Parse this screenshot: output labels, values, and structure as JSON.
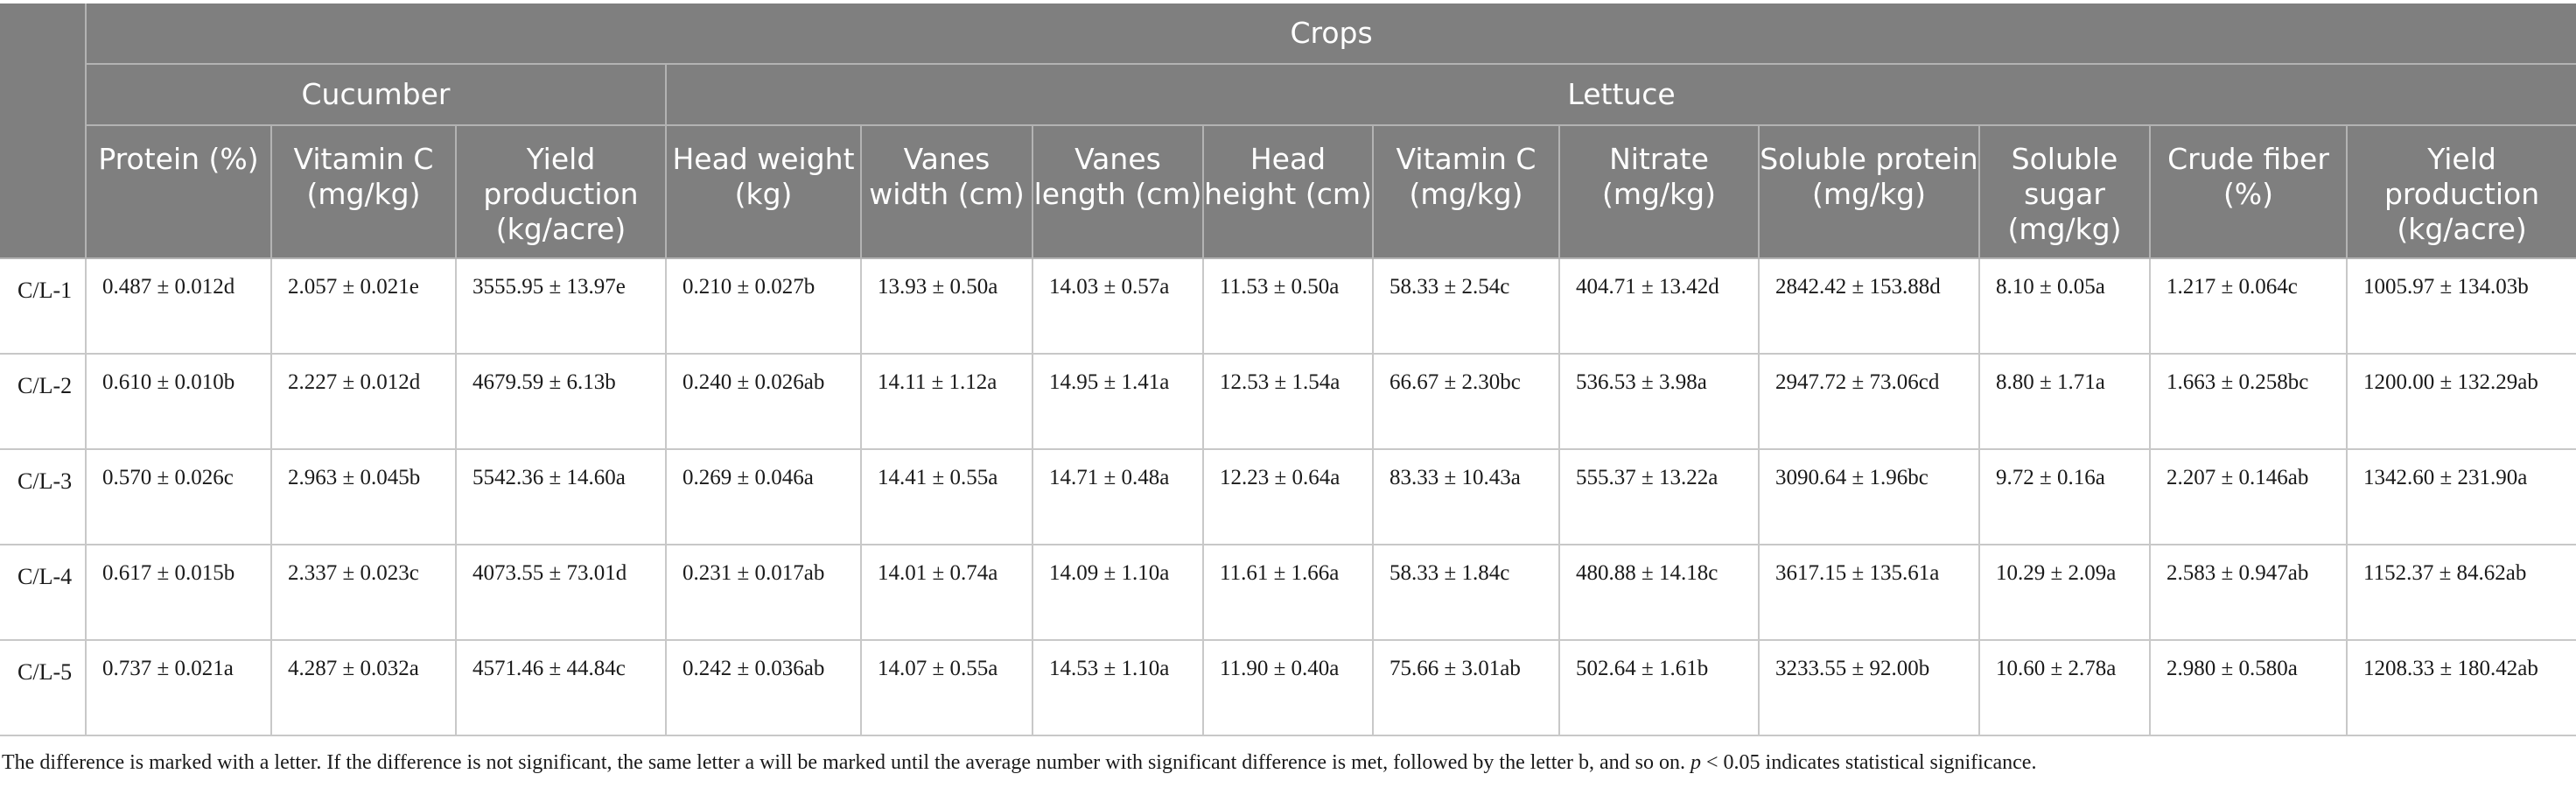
{
  "header": {
    "crops_label": "Crops",
    "group_cucumber": "Cucumber",
    "group_lettuce": "Lettuce",
    "cucumber_columns": [
      "Protein (%)",
      "Vitamin C (mg/kg)",
      "Yield production (kg/acre)"
    ],
    "lettuce_columns": [
      "Head weight (kg)",
      "Vanes width (cm)",
      "Vanes length (cm)",
      "Head height (cm)",
      "Vitamin C (mg/kg)",
      "Nitrate (mg/kg)",
      "Soluble protein (mg/kg)",
      "Soluble sugar (mg/kg)",
      "Crude fiber (%)",
      "Yield production (kg/acre)"
    ]
  },
  "rows": [
    {
      "label": "C/L-1",
      "cells": [
        "0.487 ± 0.012d",
        "2.057 ± 0.021e",
        "3555.95 ± 13.97e",
        "0.210 ± 0.027b",
        "13.93 ± 0.50a",
        "14.03 ± 0.57a",
        "11.53 ± 0.50a",
        "58.33 ± 2.54c",
        "404.71 ± 13.42d",
        "2842.42 ± 153.88d",
        "8.10 ± 0.05a",
        "1.217 ± 0.064c",
        "1005.97 ± 134.03b"
      ]
    },
    {
      "label": "C/L-2",
      "cells": [
        "0.610 ± 0.010b",
        "2.227 ± 0.012d",
        "4679.59 ± 6.13b",
        "0.240 ± 0.026ab",
        "14.11 ± 1.12a",
        "14.95 ± 1.41a",
        "12.53 ± 1.54a",
        "66.67 ± 2.30bc",
        "536.53 ± 3.98a",
        "2947.72 ± 73.06cd",
        "8.80 ± 1.71a",
        "1.663 ± 0.258bc",
        "1200.00 ± 132.29ab"
      ]
    },
    {
      "label": "C/L-3",
      "cells": [
        "0.570 ± 0.026c",
        "2.963 ± 0.045b",
        "5542.36 ± 14.60a",
        "0.269 ± 0.046a",
        "14.41 ± 0.55a",
        "14.71 ± 0.48a",
        "12.23 ± 0.64a",
        "83.33 ± 10.43a",
        "555.37 ± 13.22a",
        "3090.64 ± 1.96bc",
        "9.72 ± 0.16a",
        "2.207 ± 0.146ab",
        "1342.60 ± 231.90a"
      ]
    },
    {
      "label": "C/L-4",
      "cells": [
        "0.617 ± 0.015b",
        "2.337 ± 0.023c",
        "4073.55 ± 73.01d",
        "0.231 ± 0.017ab",
        "14.01 ± 0.74a",
        "14.09 ± 1.10a",
        "11.61 ± 1.66a",
        "58.33 ± 1.84c",
        "480.88 ± 14.18c",
        "3617.15 ± 135.61a",
        "10.29 ± 2.09a",
        "2.583 ± 0.947ab",
        "1152.37 ± 84.62ab"
      ]
    },
    {
      "label": "C/L-5",
      "cells": [
        "0.737 ± 0.021a",
        "4.287 ± 0.032a",
        "4571.46 ± 44.84c",
        "0.242 ± 0.036ab",
        "14.07 ± 0.55a",
        "14.53 ± 1.10a",
        "11.90 ± 0.40a",
        "75.66 ± 3.01ab",
        "502.64 ± 1.61b",
        "3233.55 ± 92.00b",
        "10.60 ± 2.78a",
        "2.980 ± 0.580a",
        "1208.33 ± 180.42ab"
      ]
    }
  ],
  "footnote": {
    "text_before": "The difference is marked with a letter. If the difference is not significant, the same letter a will be marked until the average number with significant difference is met, followed by the letter b, and so on. ",
    "p_symbol": "p",
    "text_after": " < 0.05 indicates statistical significance."
  }
}
